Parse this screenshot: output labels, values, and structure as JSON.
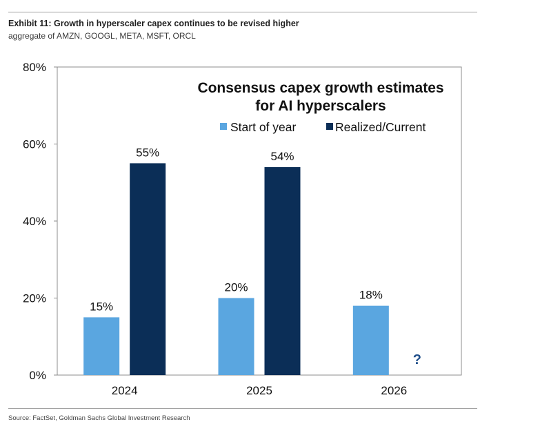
{
  "exhibit": {
    "title": "Exhibit 11: Growth in hyperscaler capex continues to be revised higher",
    "subtitle": "aggregate of AMZN, GOOGL, META, MSFT, ORCL",
    "source": "Source: FactSet, Goldman Sachs Global Investment Research"
  },
  "chart_data": {
    "type": "bar",
    "title_lines": [
      "Consensus capex growth estimates",
      "for AI hyperscalers"
    ],
    "xlabel": "",
    "ylabel": "",
    "categories": [
      "2024",
      "2025",
      "2026"
    ],
    "series": [
      {
        "name": "Start of year",
        "color": "#5aa6e0",
        "values": [
          15,
          20,
          18
        ],
        "labels": [
          "15%",
          "20%",
          "18%"
        ]
      },
      {
        "name": "Realized/Current",
        "color": "#0b2e57",
        "values": [
          55,
          54,
          null
        ],
        "labels": [
          "55%",
          "54%",
          ""
        ]
      }
    ],
    "annotations": [
      {
        "category": "2026",
        "series": "Realized/Current",
        "text": "?",
        "color": "#1f4e8a"
      }
    ],
    "ylim": [
      0,
      80
    ],
    "yticks": [
      0,
      20,
      40,
      60,
      80
    ],
    "ytick_labels": [
      "0%",
      "20%",
      "40%",
      "60%",
      "80%"
    ],
    "grid": false,
    "legend_position": "top-right"
  }
}
